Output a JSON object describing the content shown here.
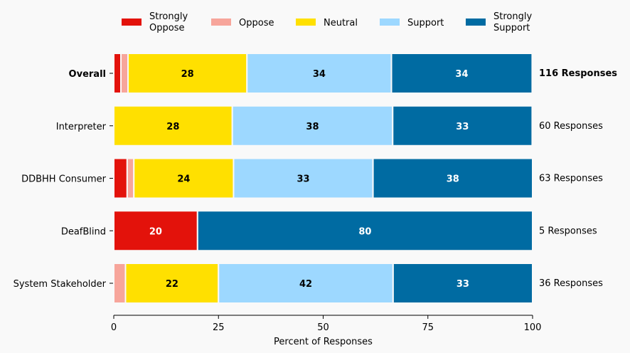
{
  "chart_data": {
    "type": "bar",
    "orientation": "horizontal",
    "stacked": true,
    "xlabel": "Percent of Responses",
    "xlim": [
      0,
      100
    ],
    "xticks": [
      0,
      25,
      50,
      75,
      100
    ],
    "categories": [
      "Overall",
      "Interpreter",
      "DDBHH Consumer",
      "DeafBlind",
      "System Stakeholder"
    ],
    "bold_categories": [
      "Overall"
    ],
    "responses": [
      "116 Responses",
      "60 Responses",
      "63 Responses",
      "5 Responses",
      "36 Responses"
    ],
    "series": [
      {
        "name": "Strongly Oppose",
        "legend_lines": [
          "Strongly",
          "Oppose"
        ],
        "color": "#e3120b",
        "label_color": "#ffffff",
        "values": [
          1.7,
          0,
          3.2,
          20,
          0
        ]
      },
      {
        "name": "Oppose",
        "legend_lines": [
          "Oppose"
        ],
        "color": "#f7a59b",
        "label_color": "#000000",
        "values": [
          1.7,
          0,
          1.6,
          0,
          2.8
        ]
      },
      {
        "name": "Neutral",
        "legend_lines": [
          "Neutral"
        ],
        "color": "#ffe000",
        "label_color": "#000000",
        "values": [
          28.4,
          28.3,
          23.8,
          0,
          22.2
        ]
      },
      {
        "name": "Support",
        "legend_lines": [
          "Support"
        ],
        "color": "#9dd8ff",
        "label_color": "#000000",
        "values": [
          34.5,
          38.3,
          33.3,
          0,
          41.7
        ]
      },
      {
        "name": "Strongly Support",
        "legend_lines": [
          "Strongly",
          "Support"
        ],
        "color": "#006ba2",
        "label_color": "#ffffff",
        "values": [
          33.6,
          33.3,
          38.1,
          80,
          33.3
        ]
      }
    ],
    "data_labels": [
      [
        "",
        "",
        "28",
        "34",
        "34"
      ],
      [
        "",
        "",
        "28",
        "38",
        "33"
      ],
      [
        "",
        "",
        "24",
        "33",
        "38"
      ],
      [
        "20",
        "",
        "",
        "",
        "80"
      ],
      [
        "",
        "",
        "22",
        "42",
        "33"
      ]
    ],
    "legend_position": "top",
    "grid": false
  }
}
